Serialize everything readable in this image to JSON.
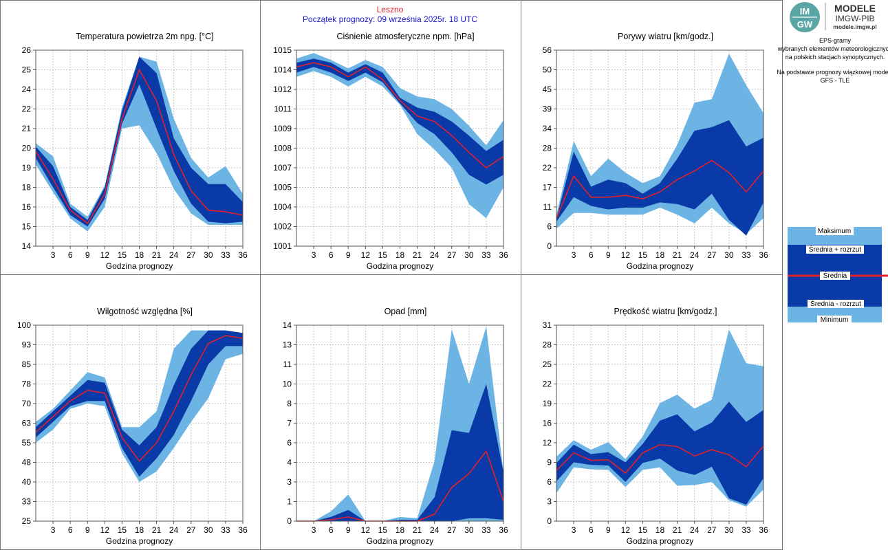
{
  "header": {
    "station": "Leszno",
    "forecast_start": "Początek prognozy: 09 września 2025r. 18 UTC"
  },
  "logo": {
    "mark_top": "IM",
    "mark_bottom": "GW",
    "line1": "MODELE",
    "line2": "IMGW-PIB",
    "line3": "modele.imgw.pl"
  },
  "description": {
    "lines": [
      "EPS-gramy",
      "wybranych elementów meteorologicznych",
      "na polskich stacjach  synoptycznych.",
      "",
      "Na podstawie prognozy wiązkowej modelu",
      "GFS - TLE"
    ]
  },
  "legend": {
    "items": [
      "Maksimum",
      "Średnia + rozrzut",
      "Średnia",
      "Średnia - rozrzut",
      "Minimum"
    ]
  },
  "colors": {
    "outer_band": "#6cb4e4",
    "inner_band": "#0a3aa8",
    "mean_line": "#e0202a",
    "station_title": "#e0202a",
    "start_text": "#1a1acc",
    "grid": "#c8c8c8"
  },
  "chart_data": [
    {
      "type": "area",
      "title": "Temperatura powietrza 2m npg. [°C]",
      "xlabel": "Godzina prognozy",
      "x": [
        0,
        3,
        6,
        9,
        12,
        15,
        18,
        21,
        24,
        27,
        30,
        33,
        36
      ],
      "x_ticks": [
        "3",
        "6",
        "9",
        "12",
        "15",
        "18",
        "21",
        "24",
        "27",
        "30",
        "33",
        "36"
      ],
      "ylim": [
        14,
        26
      ],
      "y_ticks": [
        "14",
        "15",
        "16",
        "18",
        "19",
        "20",
        "21",
        "22",
        "24",
        "25",
        "26"
      ],
      "max": [
        20.3,
        19.5,
        16.6,
        15.8,
        17.7,
        22.5,
        25.6,
        25.3,
        21.8,
        19.4,
        18.2,
        18.9,
        17.2
      ],
      "mean_plus": [
        20.1,
        18.9,
        16.4,
        15.6,
        17.6,
        22.3,
        25.6,
        24.6,
        20.6,
        18.8,
        17.8,
        17.8,
        16.7
      ],
      "mean": [
        19.8,
        18.1,
        16.2,
        15.4,
        17.2,
        21.8,
        24.8,
        22.9,
        19.6,
        17.4,
        16.2,
        16.1,
        15.9
      ],
      "mean_minus": [
        19.4,
        17.6,
        15.9,
        15.2,
        16.9,
        21.5,
        23.9,
        21.2,
        18.6,
        16.6,
        15.5,
        15.4,
        15.5
      ],
      "min": [
        19.0,
        17.3,
        15.7,
        14.9,
        16.4,
        21.2,
        21.4,
        19.7,
        17.5,
        16.0,
        15.3,
        15.3,
        15.3
      ]
    },
    {
      "type": "area",
      "title": "Ciśnienie atmosferyczne npm. [hPa]",
      "xlabel": "Godzina prognozy",
      "x": [
        0,
        3,
        6,
        9,
        12,
        15,
        18,
        21,
        24,
        27,
        30,
        33,
        36
      ],
      "x_ticks": [
        "3",
        "6",
        "9",
        "12",
        "15",
        "18",
        "21",
        "24",
        "27",
        "30",
        "33",
        "36"
      ],
      "ylim": [
        1001,
        1015
      ],
      "y_ticks": [
        "1001",
        "1002",
        "1004",
        "1005",
        "1007",
        "1008",
        "1009",
        "1011",
        "1012",
        "1014",
        "1015"
      ],
      "max": [
        1014.4,
        1014.8,
        1014.3,
        1013.7,
        1014.3,
        1013.8,
        1012.3,
        1011.7,
        1011.5,
        1010.8,
        1009.6,
        1008.2,
        1010.0
      ],
      "mean_plus": [
        1014.1,
        1014.4,
        1014.1,
        1013.4,
        1014.0,
        1013.4,
        1011.6,
        1010.9,
        1010.6,
        1009.9,
        1008.9,
        1007.8,
        1008.6
      ],
      "mean": [
        1013.8,
        1014.1,
        1013.8,
        1013.1,
        1013.8,
        1012.9,
        1011.4,
        1010.3,
        1009.9,
        1008.9,
        1007.7,
        1006.6,
        1007.4
      ],
      "mean_minus": [
        1013.4,
        1013.8,
        1013.4,
        1012.8,
        1013.4,
        1012.7,
        1011.2,
        1009.8,
        1009.0,
        1007.7,
        1006.1,
        1005.4,
        1006.1
      ],
      "min": [
        1013.1,
        1013.5,
        1013.1,
        1012.4,
        1013.1,
        1012.4,
        1011.1,
        1009.0,
        1007.9,
        1006.6,
        1004.0,
        1003.0,
        1005.2
      ]
    },
    {
      "type": "area",
      "title": "Porywy wiatru [km/godz.]",
      "xlabel": "Godzina prognozy",
      "x": [
        0,
        3,
        6,
        9,
        12,
        15,
        18,
        21,
        24,
        27,
        30,
        33,
        36
      ],
      "x_ticks": [
        "3",
        "6",
        "9",
        "12",
        "15",
        "18",
        "21",
        "24",
        "27",
        "30",
        "33",
        "36"
      ],
      "ylim": [
        0,
        56
      ],
      "y_ticks": [
        "0",
        "6",
        "11",
        "17",
        "22",
        "28",
        "34",
        "39",
        "45",
        "50",
        "56"
      ],
      "max": [
        9,
        30,
        20,
        25,
        21,
        18,
        20,
        29,
        41,
        42,
        55,
        46,
        38
      ],
      "mean_plus": [
        8,
        27,
        17,
        19,
        18,
        15,
        18,
        25,
        33,
        34,
        36,
        28.5,
        31
      ],
      "mean": [
        8,
        20,
        14,
        14,
        14.5,
        13.5,
        15.5,
        19,
        21.5,
        24.5,
        21,
        15.5,
        21.5
      ],
      "mean_minus": [
        7,
        14,
        11.5,
        10.5,
        11,
        11,
        12.5,
        12,
        10.5,
        15,
        7.5,
        3,
        12.5
      ],
      "min": [
        5,
        9.5,
        9.5,
        9,
        9,
        9,
        11,
        9,
        6.5,
        11,
        6.5,
        3.5,
        8
      ]
    },
    {
      "type": "area",
      "title": "Wilgotność względna [%]",
      "xlabel": "Godzina prognozy",
      "x": [
        0,
        3,
        6,
        9,
        12,
        15,
        18,
        21,
        24,
        27,
        30,
        33,
        36
      ],
      "x_ticks": [
        "3",
        "6",
        "9",
        "12",
        "15",
        "18",
        "21",
        "24",
        "27",
        "30",
        "33",
        "36"
      ],
      "ylim": [
        25,
        100
      ],
      "y_ticks": [
        "25",
        "33",
        "40",
        "48",
        "55",
        "63",
        "70",
        "78",
        "85",
        "93",
        "100"
      ],
      "max": [
        63,
        68,
        75,
        82,
        80,
        61,
        61,
        67,
        91,
        98,
        98,
        98,
        97
      ],
      "mean_plus": [
        61,
        67,
        73,
        79,
        78,
        60,
        54,
        61,
        77,
        91,
        98,
        98,
        97
      ],
      "mean": [
        59,
        65,
        71,
        75,
        74,
        57,
        48,
        55,
        67,
        81,
        93,
        96,
        95
      ],
      "mean_minus": [
        57,
        63,
        69,
        71,
        71,
        53,
        42,
        49,
        58,
        71,
        85,
        92,
        92
      ],
      "min": [
        55,
        60,
        68,
        70,
        69,
        51,
        40,
        44,
        53,
        63,
        72,
        87,
        89
      ]
    },
    {
      "type": "area",
      "title": "Opad [mm]",
      "xlabel": "Godzina prognozy",
      "x": [
        0,
        3,
        6,
        9,
        12,
        15,
        18,
        21,
        24,
        27,
        30,
        33,
        36
      ],
      "x_ticks": [
        "3",
        "6",
        "9",
        "12",
        "15",
        "18",
        "21",
        "24",
        "27",
        "30",
        "33",
        "36"
      ],
      "ylim": [
        0,
        14
      ],
      "y_ticks": [
        "0",
        "1",
        "3",
        "4",
        "6",
        "7",
        "8",
        "10",
        "11",
        "13",
        "14"
      ],
      "max": [
        0,
        0,
        0.7,
        1.9,
        0,
        0,
        0.3,
        0.2,
        4.3,
        13.7,
        9.8,
        13.9,
        3.5
      ],
      "mean_plus": [
        0,
        0,
        0.3,
        0.8,
        0,
        0,
        0.1,
        0.1,
        1.7,
        6.5,
        6.3,
        9.8,
        3.5
      ],
      "mean": [
        0,
        0,
        0.1,
        0.3,
        0,
        0,
        0,
        0,
        0.5,
        2.4,
        3.4,
        5.0,
        1.4
      ],
      "mean_minus": [
        0,
        0,
        0,
        0,
        0,
        0,
        0,
        0,
        0,
        0,
        0.2,
        0.2,
        0.1
      ],
      "min": [
        0,
        0,
        0,
        0,
        0,
        0,
        0,
        0,
        0,
        0,
        0,
        0,
        0
      ]
    },
    {
      "type": "area",
      "title": "Prędkość wiatru [km/godz.]",
      "xlabel": "Godzina prognozy",
      "x": [
        0,
        3,
        6,
        9,
        12,
        15,
        18,
        21,
        24,
        27,
        30,
        33,
        36
      ],
      "x_ticks": [
        "3",
        "6",
        "9",
        "12",
        "15",
        "18",
        "21",
        "24",
        "27",
        "30",
        "33",
        "36"
      ],
      "ylim": [
        0,
        31
      ],
      "y_ticks": [
        "0",
        "3",
        "6",
        "9",
        "12",
        "16",
        "19",
        "22",
        "25",
        "28",
        "31"
      ],
      "max": [
        10.2,
        12.8,
        11.3,
        12.5,
        9.8,
        13.4,
        18.7,
        20.0,
        17.8,
        19.2,
        30.3,
        25.0,
        24.5
      ],
      "mean_plus": [
        9.2,
        12.1,
        10.6,
        10.9,
        9.3,
        12.2,
        15.9,
        16.9,
        14.2,
        15.6,
        18.9,
        15.7,
        17.6
      ],
      "mean": [
        8.0,
        10.8,
        9.6,
        9.7,
        7.6,
        10.8,
        12.1,
        11.8,
        10.3,
        11.3,
        10.5,
        8.6,
        11.9
      ],
      "mean_minus": [
        6.3,
        9.3,
        8.9,
        8.8,
        6.2,
        9.2,
        9.9,
        8.0,
        7.3,
        8.6,
        3.6,
        2.6,
        6.8
      ],
      "min": [
        4.4,
        8.5,
        8.2,
        8.1,
        5.4,
        8.1,
        8.5,
        5.6,
        5.7,
        6.2,
        3.3,
        2.3,
        5.0
      ]
    }
  ]
}
